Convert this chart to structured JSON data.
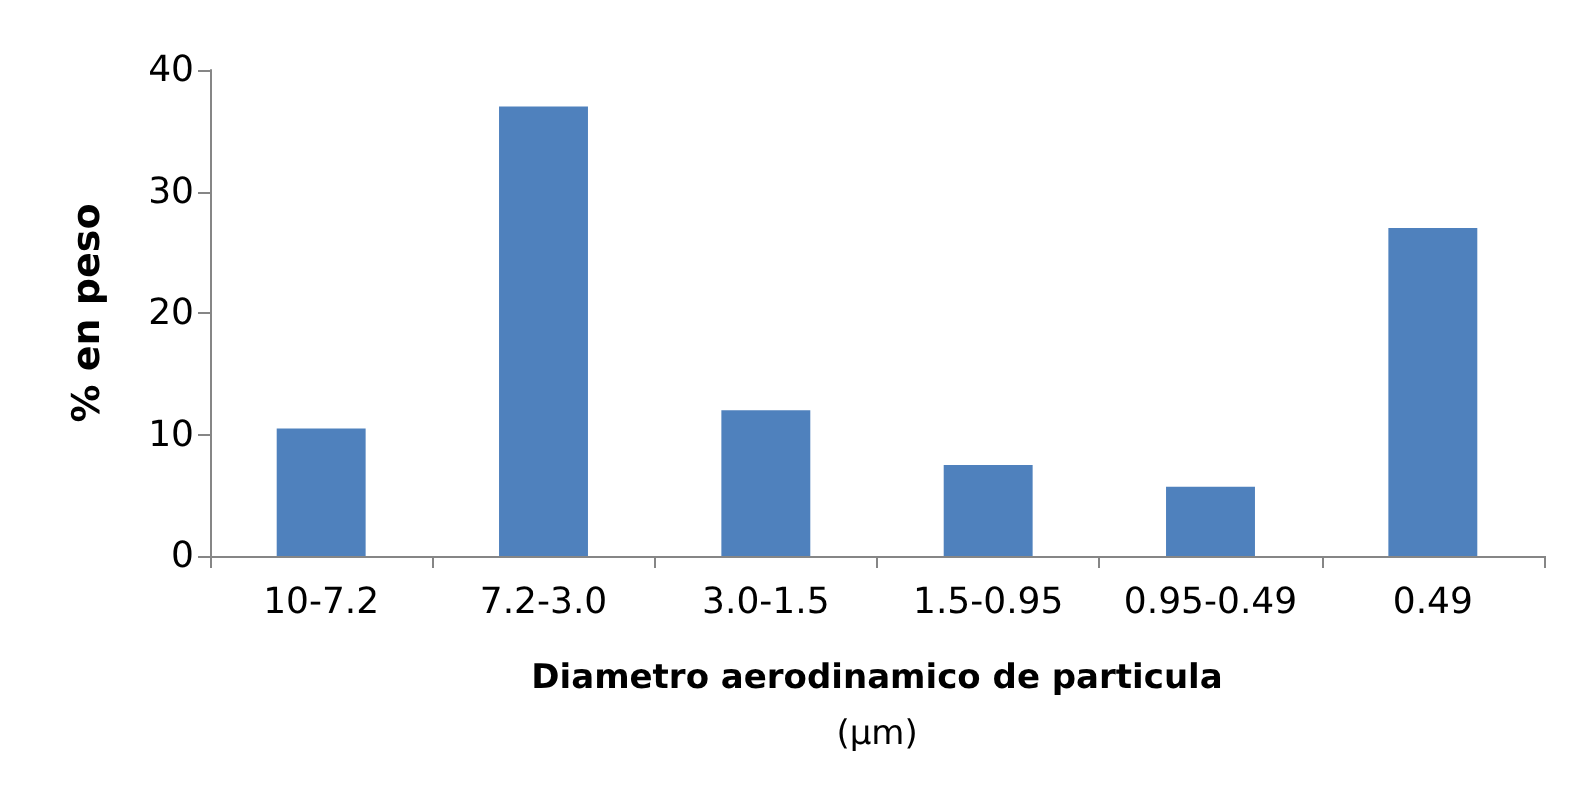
{
  "chart_data": {
    "type": "bar",
    "ylabel": "% en peso",
    "xlabel": "Diametro aerodinamico de particula\n(µm)",
    "categories": [
      "10-7.2",
      "7.2-3.0",
      "3.0-1.5",
      "1.5-0.95",
      "0.95-0.49",
      "0.49"
    ],
    "values": [
      10.5,
      37,
      12,
      7.5,
      5.7,
      27
    ],
    "color": "#4f81bd",
    "ylim": [
      0,
      40
    ],
    "yticks": [
      0,
      10,
      20,
      30,
      40
    ],
    "grid": false
  }
}
